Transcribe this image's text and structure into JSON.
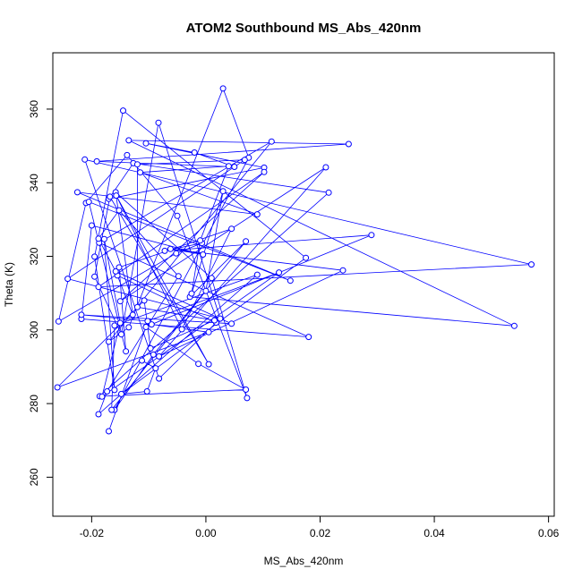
{
  "chart_data": {
    "type": "line",
    "title": "ATOM2 Southbound MS_Abs_420nm",
    "xlabel": "MS_Abs_420nm",
    "ylabel": "Theta (K)",
    "xlim": [
      -0.0268,
      0.061
    ],
    "ylim": [
      249.4,
      375.3
    ],
    "x_ticks": [
      -0.02,
      0.0,
      0.02,
      0.04,
      0.06
    ],
    "x_tick_labels": [
      "-0.02",
      "0.00",
      "0.02",
      "0.04",
      "0.06"
    ],
    "y_ticks": [
      260,
      280,
      300,
      320,
      340,
      360
    ],
    "y_tick_labels": [
      "260",
      "280",
      "300",
      "320",
      "340",
      "360"
    ],
    "grid": false,
    "markers": "open-circle",
    "line_color": "#0000ff",
    "series": [
      {
        "x": [
          -0.017,
          -0.0105,
          -0.0013,
          0.007,
          -0.0186,
          0.0215,
          -0.0127,
          -0.017,
          0.0102,
          -0.0105,
          -0.002,
          0.005,
          -0.0191,
          0.025,
          -0.0135,
          0.054,
          -0.0028,
          0.007,
          -0.0092,
          -0.016,
          0.0075,
          0.003,
          -0.0135,
          -0.017,
          0.0115,
          -0.0187,
          0.018,
          -0.0218,
          -0.02,
          -0.0005,
          -0.0062,
          0.024,
          -0.0082,
          0.021,
          -0.015,
          0.0102,
          -0.0188,
          0.057,
          -0.0212,
          -0.0082,
          0.0018,
          -0.0155,
          -0.0128,
          -0.0158,
          0.001,
          0.0072,
          -0.005,
          -0.0138,
          -0.021,
          -0.0258,
          -0.0052,
          -0.0007,
          -0.0072,
          0.029,
          -0.0095,
          0.0005,
          -0.026,
          -0.0108,
          -0.0097,
          0.0015,
          -0.012,
          -0.012,
          0.0068,
          -0.0242,
          0.0025,
          -0.0083,
          -0.0148,
          -0.0195,
          -0.0168,
          0.0005,
          -0.0157,
          -0.0042,
          0.0045,
          -0.0152,
          -0.014,
          -0.0205,
          0.0148,
          -0.0225,
          0.009,
          -0.0115,
          0.004,
          -0.001,
          -0.0025,
          0.003,
          0.0,
          -0.0165,
          -0.016,
          0.009,
          -0.0188,
          -0.0173,
          -0.0048,
          -0.0152,
          -0.0188,
          -0.0158,
          0.0045,
          -0.0218,
          -0.0102,
          0.0128,
          -0.0182,
          -0.015,
          -0.0178,
          -0.016,
          -0.0195,
          -0.0145,
          0.0175,
          -0.0148,
          -0.0103,
          -0.0088,
          -0.0112
        ],
        "y": [
          272.5,
          300.8,
          290.8,
          283.8,
          282.0,
          337.3,
          345.3,
          335.6,
          344.1,
          350.7,
          348.2,
          344.3,
          345.8,
          350.5,
          351.5,
          301.1,
          309.0,
          324.1,
          293.3,
          278.3,
          346.8,
          365.6,
          300.7,
          296.8,
          351.2,
          323.7,
          298.1,
          303.0,
          328.4,
          320.5,
          322.0,
          316.2,
          292.8,
          344.2,
          307.8,
          342.9,
          311.7,
          317.8,
          346.3,
          286.8,
          302.0,
          314.8,
          304.1,
          337.4,
          314.1,
          281.5,
          331.0,
          347.5,
          334.5,
          302.3,
          320.8,
          323.6,
          321.5,
          325.8,
          301.5,
          299.4,
          284.4,
          308.0,
          295.0,
          302.6,
          306.2,
          345.0,
          346.2,
          313.9,
          303.1,
          356.3,
          298.8,
          314.5,
          336.2,
          290.7,
          336.5,
          300.2,
          327.5,
          317.0,
          294.2,
          334.8,
          313.4,
          337.4,
          331.4,
          342.8,
          344.5,
          324.3,
          309.9,
          337.7,
          310.6,
          278.3,
          301.2,
          315.0,
          277.1,
          283.3,
          314.6,
          332.5,
          324.8,
          315.9,
          301.7,
          304.1,
          302.4,
          315.6,
          281.9,
          301.9,
          324.7,
          283.7,
          319.9,
          359.6,
          319.6,
          282.6,
          283.3,
          289.6,
          291.7
        ]
      }
    ]
  }
}
